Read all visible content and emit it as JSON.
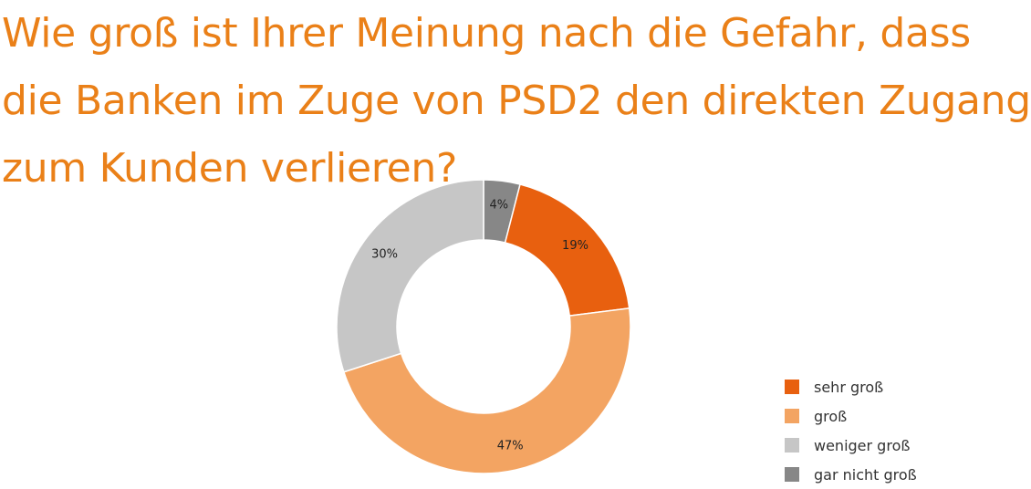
{
  "chart_data": {
    "type": "pie",
    "title_lines": [
      "Wie groß ist Ihrer Meinung nach die Gefahr, dass",
      "die Banken im Zuge von PSD2 den direkten Zugang",
      "zum Kunden verlieren?"
    ],
    "categories": [
      "gar nicht groß",
      "sehr groß",
      "groß",
      "weniger groß"
    ],
    "values": [
      4,
      19,
      47,
      30
    ],
    "labels": [
      "4%",
      "19%",
      "47%",
      "30%"
    ],
    "colors": [
      "#878787",
      "#e8600f",
      "#f3a462",
      "#c6c6c6"
    ],
    "legend": [
      {
        "label": "sehr groß",
        "color": "#e8600f"
      },
      {
        "label": "groß",
        "color": "#f3a462"
      },
      {
        "label": "weniger groß",
        "color": "#c6c6c6"
      },
      {
        "label": "gar nicht groß",
        "color": "#878787"
      }
    ],
    "legend_position": "bottom-right",
    "donut": true
  }
}
